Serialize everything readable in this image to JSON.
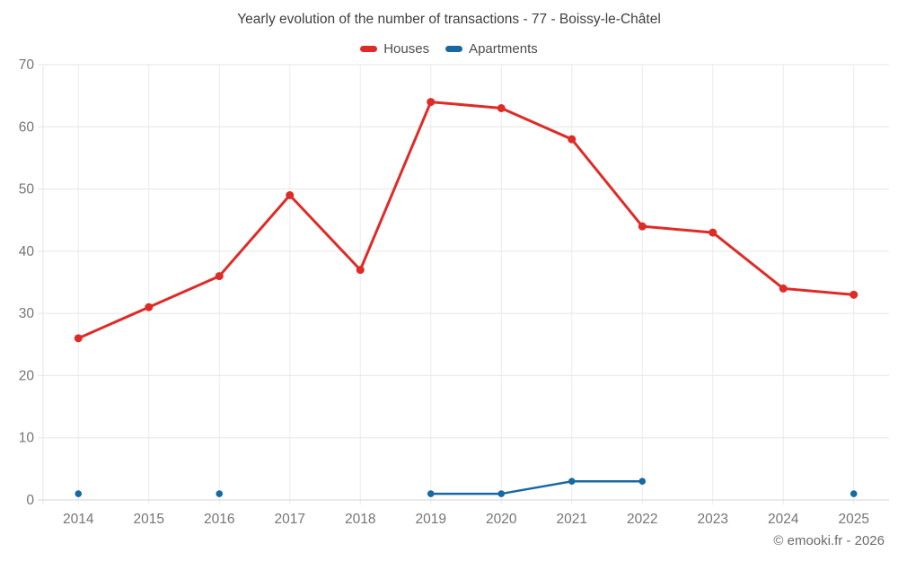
{
  "chart_data": {
    "type": "line",
    "title": "Yearly evolution of the number of transactions - 77 - Boissy-le-Châtel",
    "categories": [
      "2014",
      "2015",
      "2016",
      "2017",
      "2018",
      "2019",
      "2020",
      "2021",
      "2022",
      "2023",
      "2024",
      "2025"
    ],
    "series": [
      {
        "name": "Houses",
        "color": "#df2b27",
        "values": [
          26,
          31,
          36,
          49,
          37,
          64,
          63,
          58,
          44,
          43,
          34,
          33
        ]
      },
      {
        "name": "Apartments",
        "color": "#1769a2",
        "values": [
          1,
          null,
          1,
          null,
          null,
          1,
          1,
          3,
          3,
          null,
          null,
          1
        ]
      }
    ],
    "xlabel": "",
    "ylabel": "",
    "ylim": [
      0,
      70
    ],
    "y_ticks": [
      0,
      10,
      20,
      30,
      40,
      50,
      60,
      70
    ],
    "grid": true,
    "legend_position": "top"
  },
  "footer": {
    "watermark": "© emooki.fr - 2026"
  }
}
